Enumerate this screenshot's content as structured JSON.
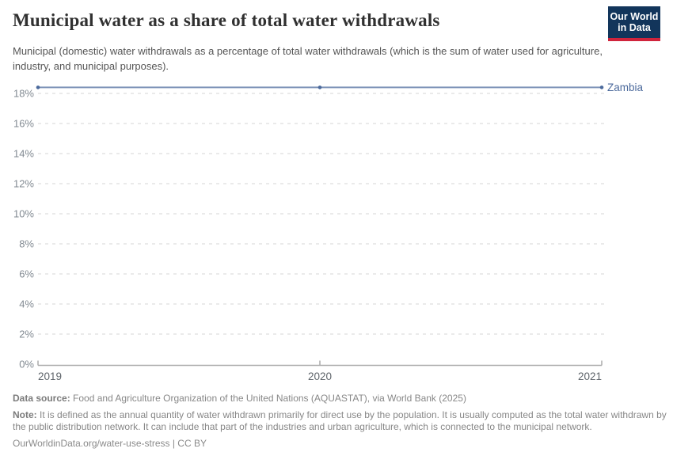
{
  "header": {
    "title": "Municipal water as a share of total water withdrawals",
    "subtitle": "Municipal (domestic) water withdrawals as a percentage of total water withdrawals (which is the sum of water used for agriculture, industry, and municipal purposes).",
    "logo": {
      "line1": "Our World",
      "line2": "in Data",
      "bg_color": "#12355b",
      "accent_color": "#d0243c"
    }
  },
  "chart_data": {
    "type": "line",
    "title": "Municipal water as a share of total water withdrawals",
    "x": [
      2019,
      2020,
      2021
    ],
    "series": [
      {
        "name": "Zambia",
        "values": [
          18.4,
          18.4,
          18.4
        ],
        "color": "#4C6A9C"
      }
    ],
    "ylim": [
      0,
      18
    ],
    "yticks": [
      0,
      2,
      4,
      6,
      8,
      10,
      12,
      14,
      16,
      18
    ],
    "ytick_format": "{}%",
    "xticks": [
      2019,
      2020,
      2021
    ],
    "xlabel": "",
    "ylabel": "",
    "grid": "horizontal-dashed",
    "legend_position": "right-of-line-end",
    "marker": "dot"
  },
  "footer": {
    "data_source_label": "Data source:",
    "data_source": "Food and Agriculture Organization of the United Nations (AQUASTAT), via World Bank (2025)",
    "note_label": "Note:",
    "note": "It is defined as the annual quantity of water withdrawn primarily for direct use by the population. It is usually computed as the total water withdrawn by the public distribution network. It can include that part of the industries and urban agriculture, which is connected to the municipal network.",
    "link": "OurWorldinData.org/water-use-stress | CC BY"
  }
}
